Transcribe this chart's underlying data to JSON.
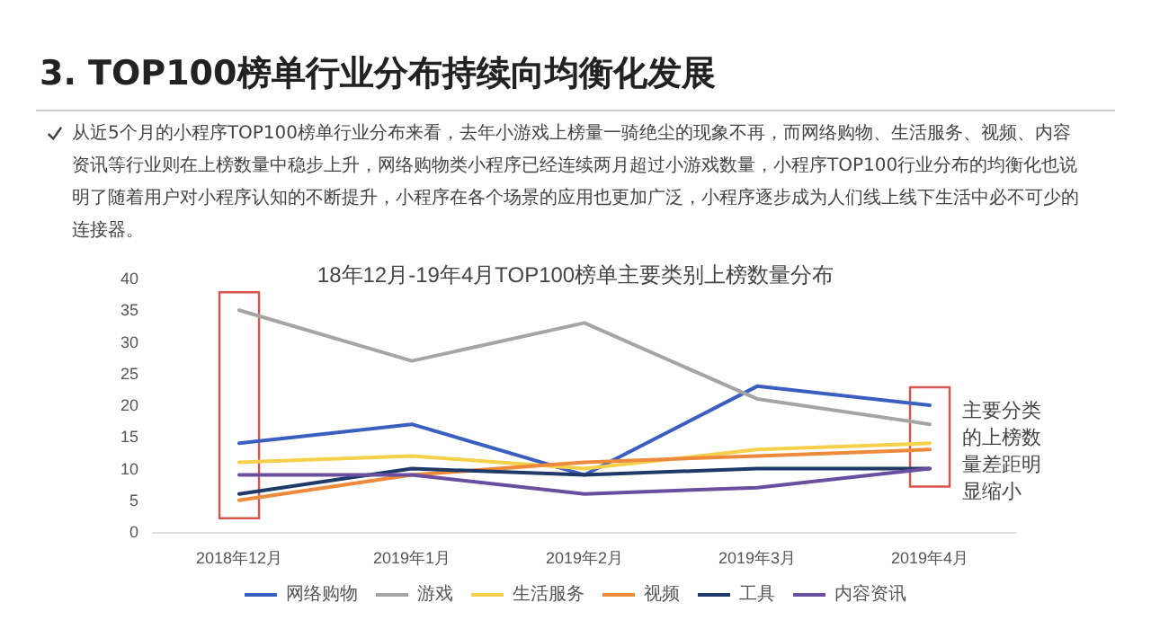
{
  "chart_data": {
    "type": "line",
    "title": "3. TOP100榜单行业分布持续向均衡化发展",
    "subtitle": "从近5个月的小程序TOP100榜单行业分布来看，去年小游戏上榜量一骑绝尘的现象不再，而网络购物、生活服务、视频、内容资讯等行业则在上榜数量中稳步上升，网络购物类小程序已经连续两月超过小游戏数量，小程序TOP100行业分布的均衡化也说明了随着用户对小程序认知的不断提升，小程序在各个场景的应用也更加广泛，小程序逐步成为人们线上线下生活中必不可少的连接器。",
    "annotations": [
      "18年12月-19年4月TOP100榜单主要类别上榜数量分布",
      "主要分类的上榜数量差距明显缩小"
    ],
    "categories": [
      "2018年12月",
      "2019年1月",
      "2019年2月",
      "2019年3月",
      "2019年4月"
    ],
    "series": [
      {
        "name": "网络购物",
        "color": "#3b5fc0",
        "values": [
          14,
          17,
          9,
          23,
          20
        ]
      },
      {
        "name": "游戏",
        "color": "#a5a5a5",
        "values": [
          35,
          27,
          33,
          21,
          17
        ]
      },
      {
        "name": "生活服务",
        "color": "#f5d04a",
        "values": [
          11,
          12,
          10,
          13,
          14
        ]
      },
      {
        "name": "视频",
        "color": "#ed8a3c",
        "values": [
          5,
          9,
          11,
          12,
          13
        ]
      },
      {
        "name": "工具",
        "color": "#1f3a68",
        "values": [
          6,
          10,
          9,
          10,
          10
        ]
      },
      {
        "name": "内容资讯",
        "color": "#6a4ea0",
        "values": [
          9,
          9,
          6,
          7,
          10
        ]
      }
    ],
    "ylim": [
      0,
      40
    ],
    "yticks": [
      0,
      5,
      10,
      15,
      20,
      25,
      30,
      35,
      40
    ],
    "grid": false,
    "legend": "bottom",
    "marker": "none",
    "line_style": "solid"
  }
}
